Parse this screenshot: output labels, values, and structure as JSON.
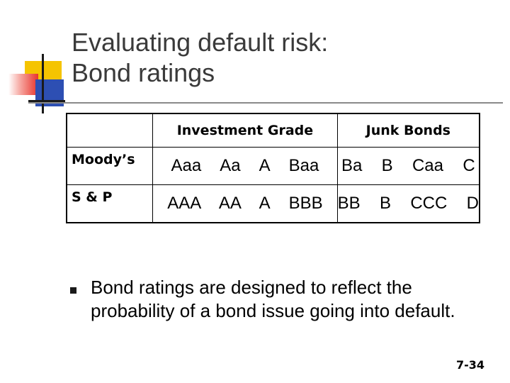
{
  "title": {
    "line1": "Evaluating default risk:",
    "line2": "Bond ratings"
  },
  "table": {
    "headers": [
      "",
      "Investment Grade",
      "Junk Bonds"
    ],
    "rows": [
      {
        "label": "Moody’s",
        "investment": "Aaa  Aa  A  Baa",
        "junk": "Ba  B  Caa  C"
      },
      {
        "label": "S & P",
        "investment": "AAA  AA  A  BBB",
        "junk": "BB  B  CCC  D"
      }
    ]
  },
  "bullet": {
    "text": "Bond ratings are designed to reflect the probability of a bond issue going into default."
  },
  "slide_number": "7-34",
  "colors": {
    "title_text": "#3a3a3a",
    "deco_yellow": "#f5c400",
    "deco_red": "#e8342c",
    "deco_blue": "#2d4fb3",
    "rule": "#8a8a8a"
  }
}
